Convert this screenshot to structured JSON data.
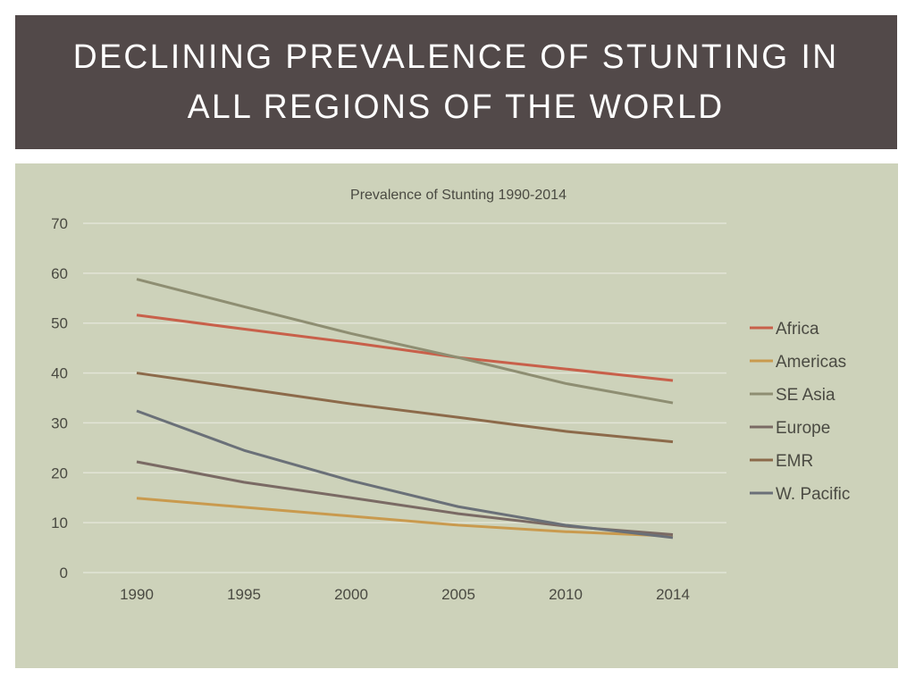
{
  "slide": {
    "title_line1": "DECLINING PREVALENCE OF STUNTING IN",
    "title_line2": "ALL REGIONS OF THE WORLD"
  },
  "chart_data": {
    "type": "line",
    "title": "Prevalence of Stunting 1990-2014",
    "xlabel": "",
    "ylabel": "",
    "categories": [
      "1990",
      "1995",
      "2000",
      "2005",
      "2010",
      "2014"
    ],
    "ylim": [
      0,
      70
    ],
    "yticks": [
      0,
      10,
      20,
      30,
      40,
      50,
      60,
      70
    ],
    "grid": true,
    "legend_position": "right",
    "series": [
      {
        "name": "Africa",
        "color": "#c8604a",
        "values": [
          51.6,
          48.8,
          46.1,
          43.1,
          40.8,
          38.5
        ]
      },
      {
        "name": "Americas",
        "color": "#c99a4e",
        "values": [
          14.9,
          13.1,
          11.3,
          9.5,
          8.2,
          7.3
        ]
      },
      {
        "name": "SE Asia",
        "color": "#8e8e72",
        "values": [
          58.8,
          53.3,
          47.9,
          43.1,
          37.9,
          34.0
        ]
      },
      {
        "name": "Europe",
        "color": "#7a6a64",
        "values": [
          22.2,
          18.1,
          15.0,
          11.8,
          9.3,
          7.6
        ]
      },
      {
        "name": "EMR",
        "color": "#8c6a4a",
        "values": [
          40.0,
          36.9,
          33.8,
          31.1,
          28.3,
          26.2
        ]
      },
      {
        "name": "W. Pacific",
        "color": "#6a7078",
        "values": [
          32.4,
          24.5,
          18.4,
          13.2,
          9.5,
          7.0
        ]
      }
    ]
  }
}
